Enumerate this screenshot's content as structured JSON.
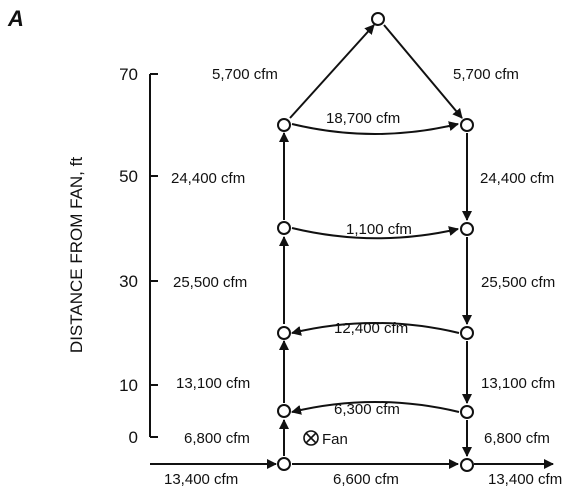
{
  "panel_label": "A",
  "axis": {
    "title": "DISTANCE FROM FAN, ft",
    "ticks": [
      "70",
      "50",
      "30",
      "10",
      "0"
    ]
  },
  "fan_label": "Fan",
  "flows": {
    "inlet": "13,400 cfm",
    "outlet": "13,400 cfm",
    "bottom": "6,600 cfm",
    "left_0_5": "6,800 cfm",
    "right_5_0": "6,800 cfm",
    "cross_5": "6,300 cfm",
    "left_5_20": "13,100 cfm",
    "right_20_5": "13,100 cfm",
    "cross_20": "12,400 cfm",
    "left_20_40": "25,500 cfm",
    "right_40_20": "25,500 cfm",
    "cross_40": "1,100 cfm",
    "left_40_60": "24,400 cfm",
    "right_60_40": "24,400 cfm",
    "cross_60": "18,700 cfm",
    "left_apex": "5,700 cfm",
    "right_apex": "5,700 cfm"
  },
  "colors": {
    "line": "#111111",
    "node_fill": "#ffffff"
  }
}
